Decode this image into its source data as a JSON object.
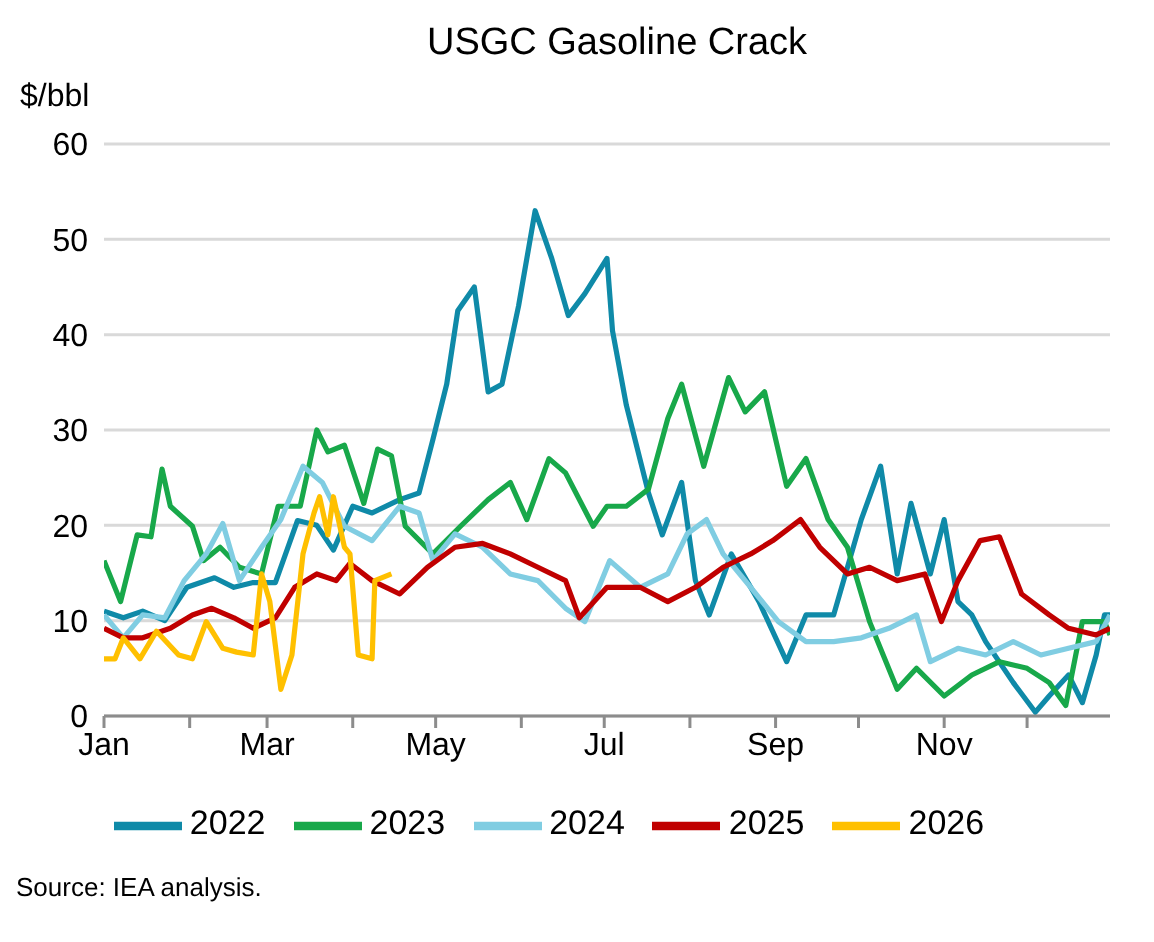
{
  "chart_data": {
    "type": "line",
    "title": "USGC Gasoline Crack",
    "ylabel": "$/bbl",
    "annotations": [
      "Source: IEA analysis."
    ],
    "xlim": [
      "--01-01",
      "--12-31"
    ],
    "xticks": [
      {
        "value": "--01-01",
        "label": "Jan"
      },
      {
        "value": "--02-01",
        "label": null
      },
      {
        "value": "--03-01",
        "label": "Mar"
      },
      {
        "value": "--04-01",
        "label": null
      },
      {
        "value": "--05-01",
        "label": "May"
      },
      {
        "value": "--06-01",
        "label": null
      },
      {
        "value": "--07-01",
        "label": "Jul"
      },
      {
        "value": "--08-01",
        "label": null
      },
      {
        "value": "--09-01",
        "label": "Sep"
      },
      {
        "value": "--10-01",
        "label": null
      },
      {
        "value": "--11-01",
        "label": "Nov"
      },
      {
        "value": "--12-01",
        "label": null
      }
    ],
    "ylim": [
      0,
      60
    ],
    "yticks": [
      0,
      10,
      20,
      30,
      40,
      50,
      60
    ],
    "grid": "y",
    "legend": "bottom",
    "marker": "none",
    "line_style": "solid",
    "series": [
      {
        "name": "2022",
        "color": "#0f8aa8",
        "x": [
          "--01-01",
          "--01-08",
          "--01-15",
          "--01-23",
          "--01-31",
          "--02-10",
          "--02-17",
          "--02-24",
          "--03-04",
          "--03-12",
          "--03-19",
          "--03-25",
          "--04-01",
          "--04-08",
          "--04-18",
          "--04-25",
          "--04-30",
          "--05-05",
          "--05-09",
          "--05-15",
          "--05-20",
          "--05-25",
          "--05-31",
          "--06-06",
          "--06-12",
          "--06-18",
          "--06-24",
          "--07-02",
          "--07-04",
          "--07-09",
          "--07-17",
          "--07-22",
          "--07-29",
          "--08-03",
          "--08-08",
          "--08-16",
          "--08-26",
          "--09-05",
          "--09-12",
          "--09-22",
          "--10-02",
          "--10-09",
          "--10-15",
          "--10-20",
          "--10-27",
          "--11-01",
          "--11-06",
          "--11-11",
          "--11-16",
          "--11-26",
          "--12-04",
          "--12-09",
          "--12-16",
          "--12-21",
          "--12-26",
          "--12-29",
          "--12-31"
        ],
        "values": [
          11,
          10.3,
          11,
          10,
          13.5,
          14.5,
          13.5,
          14,
          14,
          20.5,
          20,
          17.4,
          22,
          21.3,
          22.7,
          23.4,
          29,
          34.8,
          42.5,
          45,
          34,
          34.8,
          43,
          53,
          48,
          42,
          44.3,
          48,
          40.4,
          32.6,
          23.4,
          19,
          24.5,
          14.2,
          10.6,
          17,
          12,
          5.7,
          10.6,
          10.6,
          20.6,
          26.2,
          14.9,
          22.3,
          14.9,
          20.6,
          12,
          10.6,
          7.8,
          3.5,
          0.4,
          2.1,
          4.3,
          1.4,
          6.4,
          10.6,
          10.6
        ]
      },
      {
        "name": "2023",
        "color": "#18a84a",
        "x": [
          "--01-01",
          "--01-07",
          "--01-13",
          "--01-18",
          "--01-22",
          "--01-25",
          "--02-02",
          "--02-06",
          "--02-12",
          "--02-19",
          "--02-27",
          "--03-05",
          "--03-13",
          "--03-19",
          "--03-23",
          "--03-29",
          "--04-05",
          "--04-10",
          "--04-15",
          "--04-20",
          "--04-30",
          "--05-10",
          "--05-20",
          "--05-28",
          "--06-03",
          "--06-11",
          "--06-17",
          "--06-27",
          "--07-02",
          "--07-09",
          "--07-17",
          "--07-24",
          "--07-29",
          "--08-06",
          "--08-15",
          "--08-21",
          "--08-28",
          "--09-05",
          "--09-12",
          "--09-20",
          "--09-27",
          "--10-05",
          "--10-15",
          "--10-22",
          "--11-01",
          "--11-11",
          "--11-21",
          "--12-01",
          "--12-09",
          "--12-15",
          "--12-21",
          "--12-29",
          "--12-31"
        ],
        "values": [
          16.3,
          12,
          19,
          18.8,
          25.9,
          22,
          19.9,
          16.3,
          17.7,
          15.6,
          14.9,
          22,
          22,
          30,
          27.7,
          28.4,
          22.3,
          28,
          27.3,
          19.9,
          17,
          19.9,
          22.7,
          24.5,
          20.6,
          27,
          25.5,
          19.9,
          22,
          22,
          23.8,
          31.2,
          34.8,
          26.2,
          35.5,
          31.9,
          34,
          24.1,
          27,
          20.6,
          17.7,
          9.9,
          2.8,
          5,
          2.1,
          4.3,
          5.7,
          5,
          3.5,
          1.1,
          9.9,
          9.9,
          8.5
        ]
      },
      {
        "name": "2024",
        "color": "#80cde2",
        "x": [
          "--01-01",
          "--01-08",
          "--01-15",
          "--01-23",
          "--01-30",
          "--02-07",
          "--02-13",
          "--02-19",
          "--02-27",
          "--03-06",
          "--03-14",
          "--03-21",
          "--03-29",
          "--04-08",
          "--04-18",
          "--04-25",
          "--04-30",
          "--05-08",
          "--05-18",
          "--05-28",
          "--06-07",
          "--06-17",
          "--06-24",
          "--07-03",
          "--07-14",
          "--07-24",
          "--07-31",
          "--08-07",
          "--08-13",
          "--08-23",
          "--09-02",
          "--09-12",
          "--09-22",
          "--10-02",
          "--10-12",
          "--10-22",
          "--10-27",
          "--11-06",
          "--11-16",
          "--11-26",
          "--12-06",
          "--12-16",
          "--12-26",
          "--12-31"
        ],
        "values": [
          10.6,
          8.2,
          10.6,
          10.3,
          14.2,
          17,
          20.2,
          14.2,
          17.7,
          20.6,
          26.2,
          24.5,
          19.9,
          18.4,
          22,
          21.3,
          16.3,
          19.1,
          17.7,
          14.9,
          14.2,
          11.3,
          9.9,
          16.3,
          13.5,
          14.9,
          19.1,
          20.6,
          17,
          13.5,
          9.9,
          7.8,
          7.8,
          8.2,
          9.2,
          10.6,
          5.7,
          7.1,
          6.4,
          7.8,
          6.4,
          7.1,
          7.8,
          10.6
        ]
      },
      {
        "name": "2025",
        "color": "#c00000",
        "x": [
          "--01-01",
          "--01-08",
          "--01-15",
          "--01-25",
          "--02-02",
          "--02-09",
          "--02-17",
          "--02-24",
          "--03-04",
          "--03-11",
          "--03-19",
          "--03-26",
          "--03-31",
          "--04-08",
          "--04-18",
          "--04-28",
          "--05-08",
          "--05-18",
          "--05-28",
          "--06-07",
          "--06-17",
          "--06-22",
          "--07-02",
          "--07-14",
          "--07-24",
          "--08-03",
          "--08-13",
          "--08-23",
          "--08-31",
          "--09-10",
          "--09-17",
          "--09-27",
          "--10-05",
          "--10-15",
          "--10-25",
          "--10-31",
          "--11-06",
          "--11-14",
          "--11-21",
          "--11-29",
          "--12-09",
          "--12-16",
          "--12-26",
          "--12-31"
        ],
        "values": [
          9.2,
          8.2,
          8.2,
          9.2,
          10.6,
          11.3,
          10.3,
          9.2,
          10.3,
          13.5,
          14.9,
          14.2,
          16,
          14.2,
          12.8,
          15.6,
          17.7,
          18.1,
          17,
          15.6,
          14.2,
          10.3,
          13.5,
          13.5,
          12,
          13.5,
          15.6,
          17,
          18.4,
          20.6,
          17.7,
          14.9,
          15.6,
          14.2,
          14.9,
          9.9,
          14.2,
          18.4,
          18.8,
          12.8,
          10.6,
          9.2,
          8.5,
          9.2
        ]
      },
      {
        "name": "2026",
        "color": "#ffc000",
        "x": [
          "--01-01",
          "--01-05",
          "--01-08",
          "--01-14",
          "--01-20",
          "--01-28",
          "--02-02",
          "--02-07",
          "--02-13",
          "--02-18",
          "--02-24",
          "--02-27",
          "--03-02",
          "--03-06",
          "--03-10",
          "--03-14",
          "--03-18",
          "--03-20",
          "--03-23",
          "--03-25",
          "--03-29",
          "--03-31",
          "--04-03",
          "--04-08",
          "--04-09",
          "--04-15"
        ],
        "values": [
          6,
          6,
          8.2,
          6,
          8.9,
          6.4,
          6,
          9.9,
          7.1,
          6.7,
          6.4,
          14.9,
          12,
          2.8,
          6.4,
          17,
          21.3,
          23,
          19,
          23,
          17.7,
          17,
          6.4,
          6,
          14.2,
          14.9
        ]
      }
    ]
  }
}
